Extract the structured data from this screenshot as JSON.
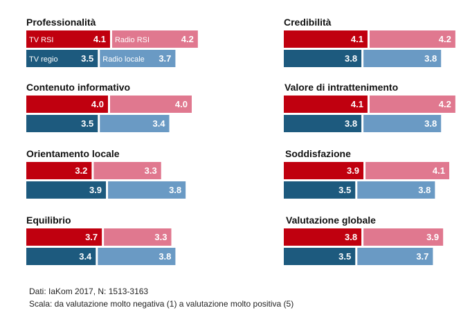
{
  "colors": {
    "tv_rsi": "#c0000f",
    "radio_rsi": "#e0788f",
    "tv_regio": "#1d5a7e",
    "radio_locale": "#6a9ac4"
  },
  "chart_data": {
    "type": "bar",
    "series": [
      "TV RSI",
      "Radio RSI",
      "TV regio",
      "Radio locale"
    ],
    "panels": [
      {
        "title": "Professionalità",
        "values": [
          4.1,
          4.2,
          3.5,
          3.7
        ],
        "show_legend": true
      },
      {
        "title": "Credibilità",
        "values": [
          4.1,
          4.2,
          3.8,
          3.8
        ]
      },
      {
        "title": "Contenuto informativo",
        "values": [
          4.0,
          4.0,
          3.5,
          3.4
        ]
      },
      {
        "title": "Valore di intrattenimento",
        "values": [
          4.1,
          4.2,
          3.8,
          3.8
        ]
      },
      {
        "title": "Orientamento locale",
        "values": [
          3.2,
          3.3,
          3.9,
          3.8
        ]
      },
      {
        "title": "Soddisfazione",
        "values": [
          3.9,
          4.1,
          3.5,
          3.8
        ]
      },
      {
        "title": "Equilibrio",
        "values": [
          3.7,
          3.3,
          3.4,
          3.8
        ]
      },
      {
        "title": "Valutazione globale",
        "values": [
          3.8,
          3.9,
          3.5,
          3.7
        ]
      }
    ]
  },
  "footer": {
    "source": "Dati: IaKom 2017, N: 1513-3163",
    "scale": "Scala: da valutazione molto negativa (1) a valutazione molto positiva (5)"
  }
}
